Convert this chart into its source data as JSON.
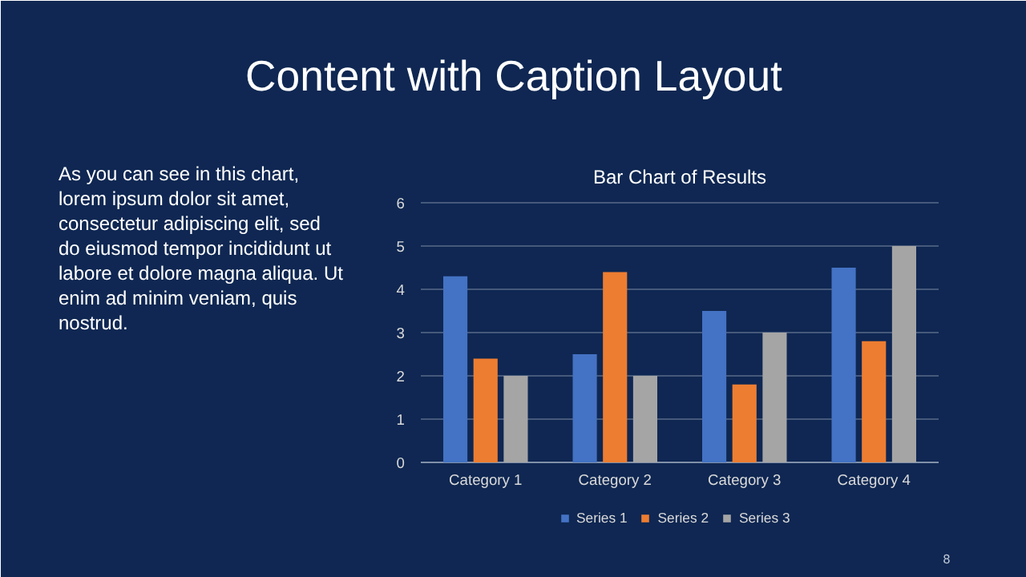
{
  "chart_data": {
    "type": "bar",
    "title": "Content with Caption Layout",
    "subtitle": "Bar Chart of Results",
    "categories": [
      "Category 1",
      "Category 2",
      "Category 3",
      "Category 4"
    ],
    "series": [
      {
        "name": "Series 1",
        "color": "#4472c4",
        "values": [
          4.3,
          2.5,
          3.5,
          4.5
        ]
      },
      {
        "name": "Series 2",
        "color": "#ed7d31",
        "values": [
          2.4,
          4.4,
          1.8,
          2.8
        ]
      },
      {
        "name": "Series 3",
        "color": "#a5a5a5",
        "values": [
          2,
          2,
          3,
          5
        ]
      }
    ],
    "ylim": [
      0,
      6
    ],
    "yticks": [
      0,
      1,
      2,
      3,
      4,
      5,
      6
    ],
    "grid": "y",
    "legend": "bottom",
    "annotations": [
      "As you can see in this chart, lorem ipsum dolor sit amet, consectetur adipiscing elit, sed do eiusmod tempor incididunt ut labore et dolore magna aliqua. Ut enim ad minim veniam, quis nostrud.",
      "8"
    ]
  }
}
